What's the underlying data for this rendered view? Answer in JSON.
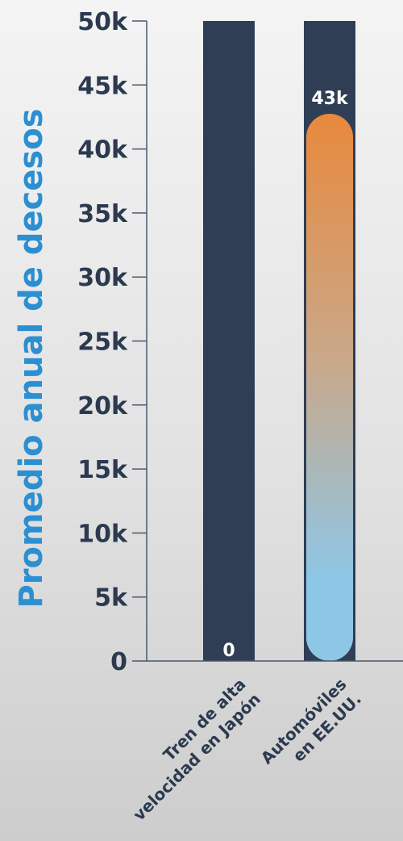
{
  "chart_data": {
    "type": "bar",
    "ylabel": "Promedio anual de decesos",
    "ylim": [
      0,
      50000
    ],
    "yticks": [
      0,
      5000,
      10000,
      15000,
      20000,
      25000,
      30000,
      35000,
      40000,
      45000,
      50000
    ],
    "ytick_labels": [
      "0",
      "5k",
      "10k",
      "15k",
      "20k",
      "25k",
      "30k",
      "35k",
      "40k",
      "45k",
      "50k"
    ],
    "categories": [
      [
        "Tren de alta",
        "velocidad en Japón"
      ],
      [
        "Automóviles",
        "en EE.UU."
      ]
    ],
    "values": [
      0,
      43000
    ],
    "data_labels": [
      "0",
      "43k"
    ],
    "grid": false,
    "colors": {
      "track": "#2f3e55",
      "fill_top": "#e8893c",
      "fill_bottom": "#8ec6e6",
      "text_dark": "#2c3a4f",
      "ylabel": "#2b8fd1"
    }
  }
}
